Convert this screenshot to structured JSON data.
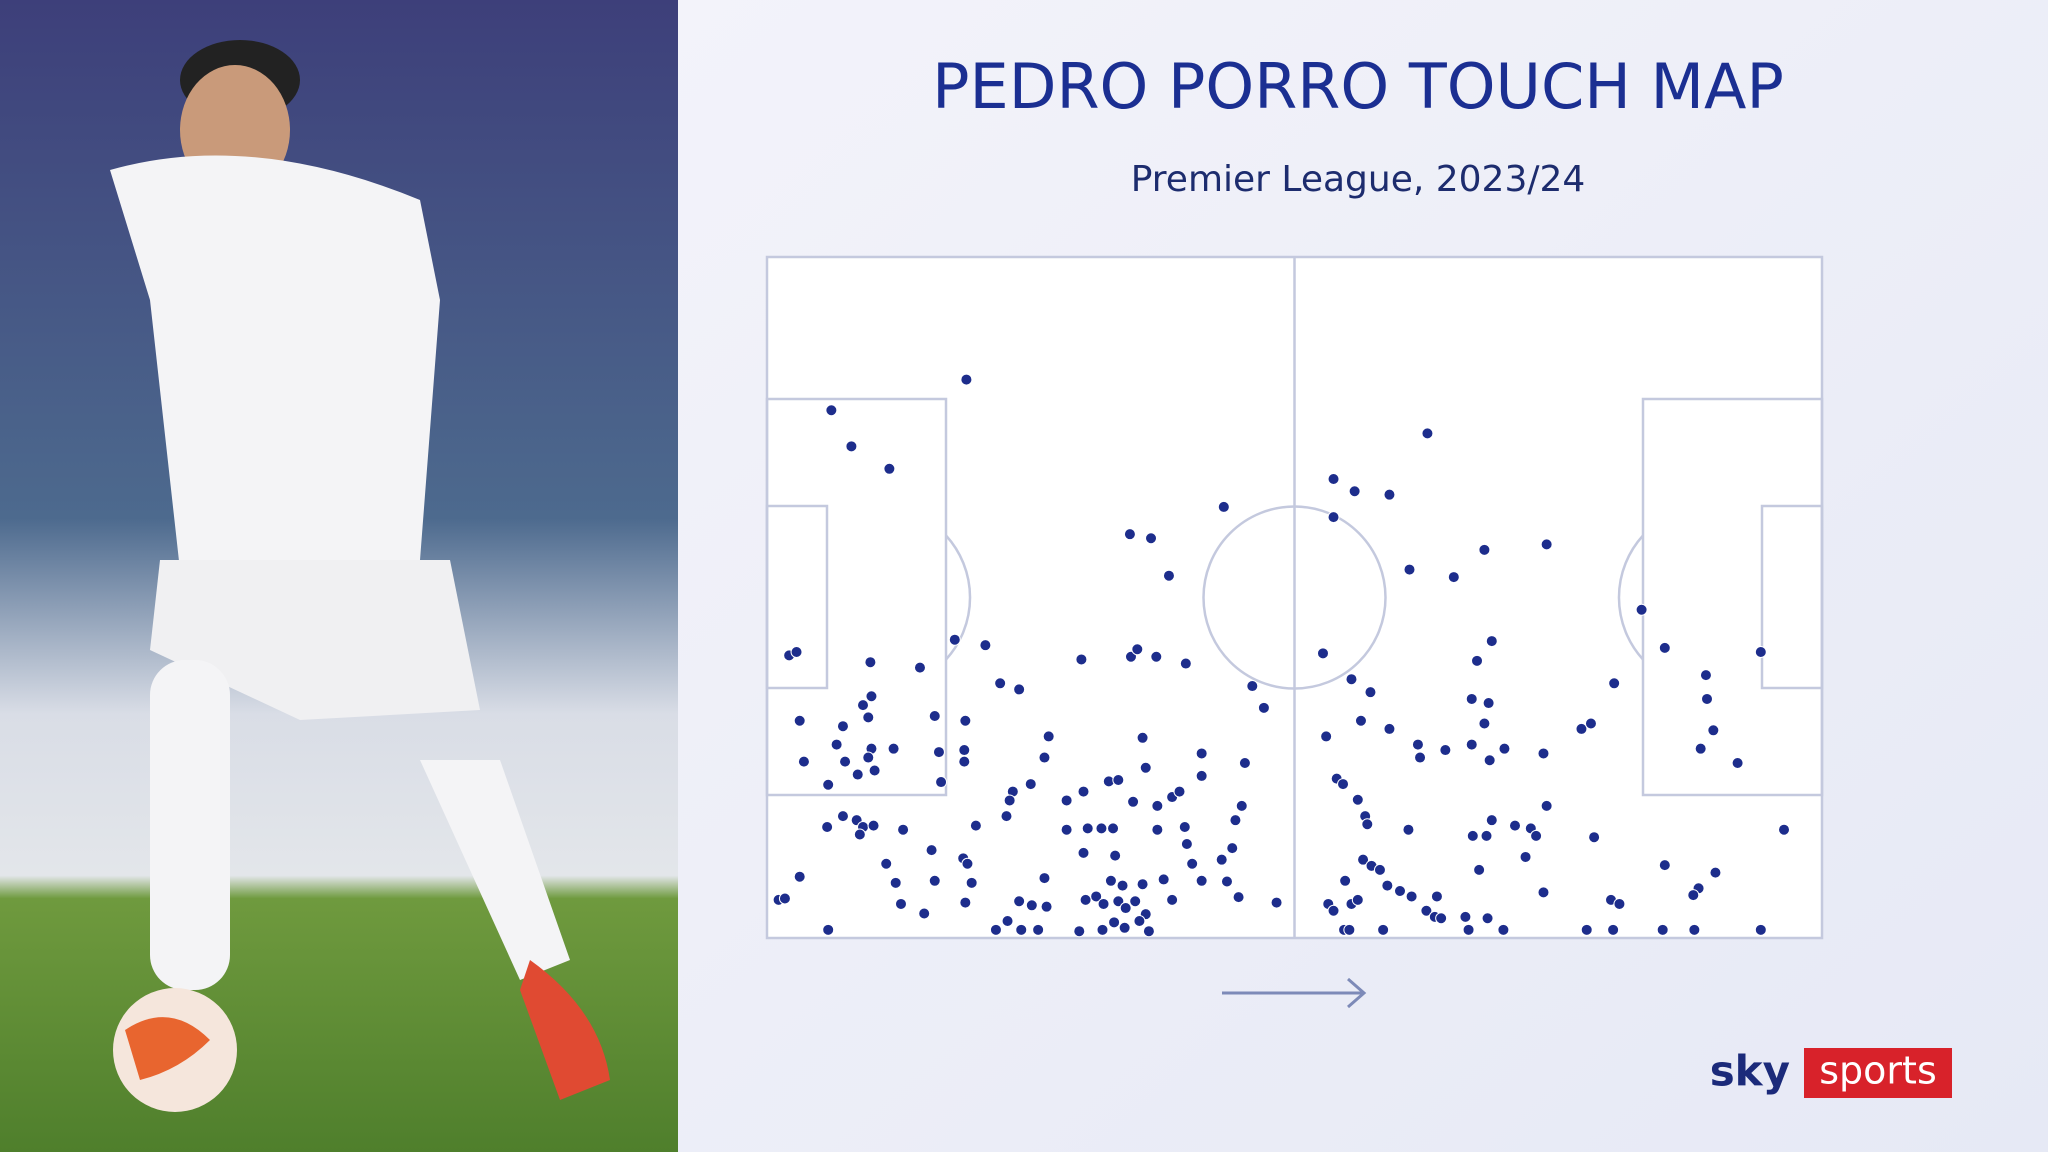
{
  "chart_data": {
    "type": "scatter",
    "title": "PEDRO PORRO TOUCH MAP",
    "subtitle": "Premier League, 2023/24",
    "logo_left": "sky",
    "logo_right": "sports",
    "xlim": [
      0,
      100
    ],
    "ylim": [
      0,
      100
    ],
    "x": [
      18.9,
      6.1,
      8.0,
      11.6,
      62.6,
      53.7,
      55.7,
      59.0,
      43.3,
      53.7,
      34.4,
      36.4,
      73.9,
      68.0,
      60.9,
      65.1,
      38.1,
      82.9,
      17.8,
      20.7,
      2.1,
      2.8,
      9.8,
      14.5,
      29.8,
      34.5,
      35.1,
      36.9,
      39.7,
      52.7,
      68.7,
      67.3,
      85.1,
      94.2,
      89.0,
      22.1,
      23.9,
      46.0,
      47.1,
      55.4,
      57.2,
      66.8,
      68.4,
      80.3,
      89.1,
      9.9,
      9.1,
      15.9,
      18.8,
      3.1,
      7.2,
      9.6,
      56.3,
      59.0,
      68.0,
      77.2,
      78.1,
      89.7,
      26.7,
      35.6,
      53.0,
      61.7,
      64.3,
      66.8,
      69.9,
      73.6,
      88.5,
      92.0,
      6.6,
      9.9,
      12.0,
      16.3,
      18.7,
      9.6,
      3.5,
      7.4,
      10.2,
      8.6,
      18.7,
      26.3,
      35.9,
      41.2,
      45.3,
      61.9,
      68.5,
      5.8,
      16.5,
      25.0,
      23.3,
      32.4,
      33.3,
      41.2,
      54.0,
      54.6,
      23.0,
      28.4,
      30.0,
      34.7,
      38.4,
      39.1,
      37.0,
      56.0,
      73.9,
      22.7,
      45.0,
      44.4,
      56.7,
      56.9,
      68.7,
      70.9,
      72.4,
      5.7,
      7.2,
      8.5,
      9.1,
      10.1,
      12.9,
      8.8,
      19.8,
      28.4,
      30.4,
      31.7,
      32.8,
      37.0,
      39.6,
      60.8,
      66.9,
      68.2,
      72.9,
      78.4,
      96.4,
      15.6,
      18.6,
      19.0,
      11.3,
      30.0,
      33.0,
      39.8,
      40.3,
      43.1,
      44.1,
      56.5,
      57.3,
      58.1,
      67.5,
      71.9,
      85.1,
      89.9,
      3.1,
      12.2,
      15.9,
      19.4,
      26.3,
      32.6,
      33.7,
      35.6,
      37.6,
      41.2,
      43.6,
      54.8,
      58.8,
      73.6,
      88.3,
      87.8,
      1.1,
      1.7,
      12.7,
      14.9,
      18.8,
      23.9,
      25.1,
      26.5,
      30.2,
      31.2,
      31.9,
      33.3,
      34.0,
      34.9,
      35.9,
      38.4,
      44.7,
      48.3,
      53.2,
      53.7,
      55.4,
      56.0,
      60.0,
      61.1,
      63.5,
      62.5,
      63.3,
      63.9,
      66.2,
      68.3,
      80.0,
      80.8,
      5.8,
      21.7,
      22.8,
      24.1,
      25.7,
      29.6,
      31.8,
      32.9,
      33.9,
      35.3,
      36.2,
      54.7,
      55.2,
      58.4,
      66.5,
      69.8,
      77.7,
      80.2,
      84.9,
      87.9,
      94.2
    ],
    "series": [
      {
        "color": "#1d2d8c",
        "values": [
          82.0,
          77.5,
          72.2,
          68.9,
          74.1,
          67.4,
          65.6,
          65.1,
          63.3,
          61.8,
          59.3,
          58.7,
          57.8,
          57.0,
          54.1,
          53.0,
          53.2,
          48.2,
          43.8,
          43.0,
          41.5,
          42.0,
          40.5,
          39.7,
          40.9,
          41.3,
          42.4,
          41.3,
          40.3,
          41.8,
          43.6,
          40.7,
          42.6,
          42.0,
          38.6,
          37.4,
          36.5,
          37.0,
          33.8,
          38.0,
          36.1,
          35.1,
          34.5,
          37.4,
          35.1,
          35.5,
          34.2,
          32.6,
          31.9,
          31.9,
          31.1,
          32.4,
          31.9,
          30.7,
          31.5,
          30.7,
          31.5,
          30.5,
          29.6,
          29.4,
          29.6,
          28.4,
          27.6,
          28.4,
          27.8,
          27.1,
          27.8,
          25.7,
          28.4,
          27.8,
          27.8,
          27.3,
          27.6,
          26.5,
          25.9,
          25.9,
          24.6,
          24.0,
          25.9,
          26.5,
          25.0,
          27.1,
          25.7,
          26.5,
          26.1,
          22.5,
          22.9,
          22.6,
          21.5,
          23.0,
          23.2,
          23.8,
          23.4,
          22.6,
          20.2,
          20.2,
          21.5,
          20.0,
          20.7,
          21.5,
          19.4,
          20.3,
          19.4,
          17.9,
          19.4,
          17.3,
          17.9,
          16.7,
          17.3,
          16.5,
          16.1,
          16.3,
          17.9,
          17.3,
          16.3,
          16.5,
          15.9,
          15.2,
          16.5,
          15.9,
          16.1,
          16.1,
          16.1,
          15.9,
          16.3,
          15.9,
          15.0,
          15.0,
          15.0,
          14.8,
          15.9,
          12.9,
          11.7,
          10.9,
          10.9,
          12.5,
          12.1,
          13.8,
          10.9,
          11.5,
          13.2,
          11.5,
          10.6,
          10.0,
          10.0,
          11.9,
          10.7,
          9.6,
          9.0,
          8.1,
          8.4,
          8.1,
          8.8,
          8.4,
          7.7,
          7.9,
          8.6,
          8.4,
          8.3,
          8.4,
          7.7,
          6.7,
          7.3,
          6.3,
          5.6,
          5.8,
          5.0,
          3.6,
          5.2,
          5.4,
          4.8,
          4.6,
          5.6,
          6.1,
          5.0,
          5.4,
          4.4,
          5.4,
          3.5,
          5.6,
          6.0,
          5.2,
          5.0,
          4.0,
          5.0,
          5.6,
          6.9,
          6.1,
          6.1,
          4.0,
          3.1,
          2.9,
          3.1,
          2.9,
          5.6,
          5.0,
          1.2,
          1.2,
          2.5,
          1.2,
          1.2,
          1.0,
          1.2,
          2.3,
          1.5,
          2.5,
          1.0,
          1.2,
          1.2,
          1.2,
          1.2,
          1.2,
          1.2,
          1.2,
          1.2,
          1.2,
          1.2
        ]
      }
    ]
  }
}
